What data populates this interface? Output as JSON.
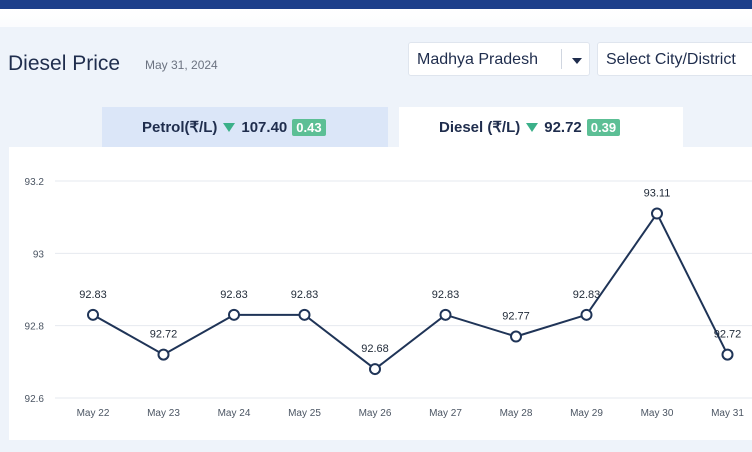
{
  "header": {
    "title": "Diesel Price",
    "date": "May 31, 2024"
  },
  "filters": {
    "state": "Madhya Pradesh",
    "city_placeholder": "Select City/District"
  },
  "tabs": {
    "petrol": {
      "label": "Petrol(₹/L)",
      "price": "107.40",
      "change": "0.43"
    },
    "diesel": {
      "label": "Diesel (₹/L)",
      "price": "92.72",
      "change": "0.39",
      "active": true
    }
  },
  "colors": {
    "line": "#1f3457",
    "up_down_badge": "#5cbf95",
    "nav": "#1d3f8a"
  },
  "chart_data": {
    "type": "line",
    "categories": [
      "May 22",
      "May 23",
      "May 24",
      "May 25",
      "May 26",
      "May 27",
      "May 28",
      "May 29",
      "May 30",
      "May 31"
    ],
    "values": [
      92.83,
      92.72,
      92.83,
      92.83,
      92.68,
      92.83,
      92.77,
      92.83,
      93.11,
      92.72
    ],
    "data_labels": [
      "92.83",
      "92.72",
      "92.83",
      "92.83",
      "92.68",
      "92.83",
      "92.77",
      "92.83",
      "93.11",
      "92.72"
    ],
    "yticks": [
      "93.2",
      "93",
      "92.8",
      "92.6"
    ],
    "ytick_values": [
      93.2,
      93.0,
      92.8,
      92.6
    ],
    "ylim": [
      92.6,
      93.2
    ],
    "grid": true,
    "legend": "none"
  }
}
